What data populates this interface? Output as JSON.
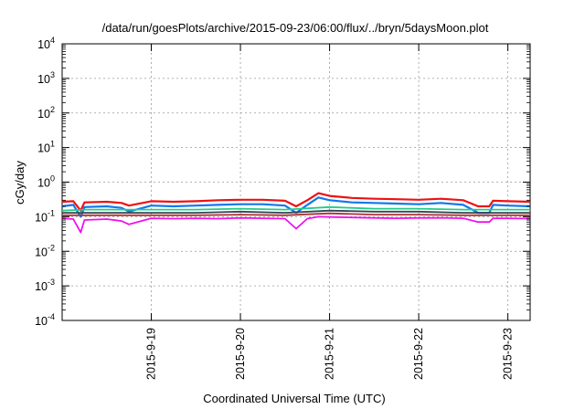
{
  "chart_data": {
    "type": "line",
    "title": "/data/run/goesPlots/archive/2015-09-23/06:00/flux/../bryn/5daysMoon.plot",
    "xlabel": "Coordinated Universal Time (UTC)",
    "ylabel": "cGy/day",
    "x_range": [
      "2015-09-18T00:00",
      "2015-09-23T06:00"
    ],
    "x_ticks": [
      "2015-9-19",
      "2015-9-20",
      "2015-9-21",
      "2015-9-22",
      "2015-9-23"
    ],
    "x_tick_times": [
      "2015-09-19T00:00",
      "2015-09-20T00:00",
      "2015-09-21T00:00",
      "2015-09-22T00:00",
      "2015-09-23T00:00"
    ],
    "y_scale": "log",
    "ylim": [
      0.0001,
      10000
    ],
    "y_ticks": [
      {
        "value": 0.0001,
        "base": "10",
        "exp": "-4"
      },
      {
        "value": 0.001,
        "base": "10",
        "exp": "-3"
      },
      {
        "value": 0.01,
        "base": "10",
        "exp": "-2"
      },
      {
        "value": 0.1,
        "base": "10",
        "exp": "-1"
      },
      {
        "value": 1,
        "base": "10",
        "exp": "0"
      },
      {
        "value": 10,
        "base": "10",
        "exp": "1"
      },
      {
        "value": 100,
        "base": "10",
        "exp": "2"
      },
      {
        "value": 1000,
        "base": "10",
        "exp": "3"
      },
      {
        "value": 10000,
        "base": "10",
        "exp": "4"
      }
    ],
    "grid": true,
    "legend": "none",
    "series": [
      {
        "color": "#ee1111",
        "values": [
          [
            "2015-09-18T00:00",
            0.27
          ],
          [
            "2015-09-18T03:00",
            0.28
          ],
          [
            "2015-09-18T05:00",
            0.15
          ],
          [
            "2015-09-18T06:00",
            0.26
          ],
          [
            "2015-09-18T12:00",
            0.27
          ],
          [
            "2015-09-18T16:00",
            0.25
          ],
          [
            "2015-09-18T18:00",
            0.21
          ],
          [
            "2015-09-19T00:00",
            0.28
          ],
          [
            "2015-09-19T06:00",
            0.27
          ],
          [
            "2015-09-19T12:00",
            0.28
          ],
          [
            "2015-09-19T18:00",
            0.3
          ],
          [
            "2015-09-20T00:00",
            0.31
          ],
          [
            "2015-09-20T06:00",
            0.31
          ],
          [
            "2015-09-20T12:00",
            0.29
          ],
          [
            "2015-09-20T15:00",
            0.2
          ],
          [
            "2015-09-20T18:00",
            0.3
          ],
          [
            "2015-09-20T21:00",
            0.48
          ],
          [
            "2015-09-21T00:00",
            0.4
          ],
          [
            "2015-09-21T06:00",
            0.35
          ],
          [
            "2015-09-21T12:00",
            0.33
          ],
          [
            "2015-09-21T18:00",
            0.32
          ],
          [
            "2015-09-22T00:00",
            0.31
          ],
          [
            "2015-09-22T06:00",
            0.33
          ],
          [
            "2015-09-22T12:00",
            0.3
          ],
          [
            "2015-09-22T16:00",
            0.2
          ],
          [
            "2015-09-22T19:00",
            0.2
          ],
          [
            "2015-09-22T20:00",
            0.29
          ],
          [
            "2015-09-23T00:00",
            0.28
          ],
          [
            "2015-09-23T06:00",
            0.27
          ]
        ]
      },
      {
        "color": "#1177ee",
        "values": [
          [
            "2015-09-18T00:00",
            0.2
          ],
          [
            "2015-09-18T03:00",
            0.22
          ],
          [
            "2015-09-18T05:00",
            0.1
          ],
          [
            "2015-09-18T06:00",
            0.19
          ],
          [
            "2015-09-18T12:00",
            0.2
          ],
          [
            "2015-09-18T16:00",
            0.18
          ],
          [
            "2015-09-18T18:00",
            0.14
          ],
          [
            "2015-09-19T00:00",
            0.21
          ],
          [
            "2015-09-19T06:00",
            0.2
          ],
          [
            "2015-09-19T12:00",
            0.21
          ],
          [
            "2015-09-19T18:00",
            0.22
          ],
          [
            "2015-09-20T00:00",
            0.23
          ],
          [
            "2015-09-20T06:00",
            0.23
          ],
          [
            "2015-09-20T12:00",
            0.21
          ],
          [
            "2015-09-20T15:00",
            0.13
          ],
          [
            "2015-09-20T18:00",
            0.22
          ],
          [
            "2015-09-20T21:00",
            0.36
          ],
          [
            "2015-09-21T00:00",
            0.3
          ],
          [
            "2015-09-21T06:00",
            0.26
          ],
          [
            "2015-09-21T12:00",
            0.25
          ],
          [
            "2015-09-21T18:00",
            0.24
          ],
          [
            "2015-09-22T00:00",
            0.23
          ],
          [
            "2015-09-22T06:00",
            0.25
          ],
          [
            "2015-09-22T12:00",
            0.22
          ],
          [
            "2015-09-22T16:00",
            0.13
          ],
          [
            "2015-09-22T19:00",
            0.13
          ],
          [
            "2015-09-22T20:00",
            0.22
          ],
          [
            "2015-09-23T00:00",
            0.21
          ],
          [
            "2015-09-23T06:00",
            0.2
          ]
        ]
      },
      {
        "color": "#22cc88",
        "values": [
          [
            "2015-09-18T00:00",
            0.15
          ],
          [
            "2015-09-18T06:00",
            0.16
          ],
          [
            "2015-09-19T00:00",
            0.16
          ],
          [
            "2015-09-19T12:00",
            0.16
          ],
          [
            "2015-09-20T00:00",
            0.17
          ],
          [
            "2015-09-20T12:00",
            0.16
          ],
          [
            "2015-09-21T00:00",
            0.19
          ],
          [
            "2015-09-21T12:00",
            0.17
          ],
          [
            "2015-09-22T00:00",
            0.17
          ],
          [
            "2015-09-22T12:00",
            0.16
          ],
          [
            "2015-09-23T00:00",
            0.16
          ],
          [
            "2015-09-23T06:00",
            0.16
          ]
        ]
      },
      {
        "color": "#334455",
        "values": [
          [
            "2015-09-18T00:00",
            0.13
          ],
          [
            "2015-09-18T06:00",
            0.13
          ],
          [
            "2015-09-19T00:00",
            0.13
          ],
          [
            "2015-09-19T12:00",
            0.13
          ],
          [
            "2015-09-20T00:00",
            0.14
          ],
          [
            "2015-09-20T12:00",
            0.13
          ],
          [
            "2015-09-21T00:00",
            0.15
          ],
          [
            "2015-09-21T12:00",
            0.14
          ],
          [
            "2015-09-22T00:00",
            0.14
          ],
          [
            "2015-09-22T12:00",
            0.13
          ],
          [
            "2015-09-23T00:00",
            0.13
          ],
          [
            "2015-09-23T06:00",
            0.13
          ]
        ]
      },
      {
        "color": "#aa3333",
        "values": [
          [
            "2015-09-18T00:00",
            0.11
          ],
          [
            "2015-09-18T06:00",
            0.11
          ],
          [
            "2015-09-19T00:00",
            0.11
          ],
          [
            "2015-09-19T12:00",
            0.11
          ],
          [
            "2015-09-20T00:00",
            0.115
          ],
          [
            "2015-09-20T12:00",
            0.11
          ],
          [
            "2015-09-21T00:00",
            0.125
          ],
          [
            "2015-09-21T12:00",
            0.115
          ],
          [
            "2015-09-22T00:00",
            0.115
          ],
          [
            "2015-09-22T12:00",
            0.11
          ],
          [
            "2015-09-23T00:00",
            0.11
          ],
          [
            "2015-09-23T06:00",
            0.11
          ]
        ]
      },
      {
        "color": "#ee11ee",
        "values": [
          [
            "2015-09-18T00:00",
            0.09
          ],
          [
            "2015-09-18T03:00",
            0.085
          ],
          [
            "2015-09-18T05:00",
            0.035
          ],
          [
            "2015-09-18T06:00",
            0.08
          ],
          [
            "2015-09-18T12:00",
            0.085
          ],
          [
            "2015-09-18T16:00",
            0.075
          ],
          [
            "2015-09-18T18:00",
            0.06
          ],
          [
            "2015-09-19T00:00",
            0.09
          ],
          [
            "2015-09-19T06:00",
            0.088
          ],
          [
            "2015-09-19T12:00",
            0.09
          ],
          [
            "2015-09-19T18:00",
            0.088
          ],
          [
            "2015-09-20T00:00",
            0.092
          ],
          [
            "2015-09-20T06:00",
            0.09
          ],
          [
            "2015-09-20T12:00",
            0.088
          ],
          [
            "2015-09-20T15:00",
            0.045
          ],
          [
            "2015-09-20T18:00",
            0.088
          ],
          [
            "2015-09-20T21:00",
            0.1
          ],
          [
            "2015-09-21T00:00",
            0.098
          ],
          [
            "2015-09-21T06:00",
            0.095
          ],
          [
            "2015-09-21T12:00",
            0.092
          ],
          [
            "2015-09-21T18:00",
            0.09
          ],
          [
            "2015-09-22T00:00",
            0.092
          ],
          [
            "2015-09-22T06:00",
            0.093
          ],
          [
            "2015-09-22T12:00",
            0.09
          ],
          [
            "2015-09-22T16:00",
            0.07
          ],
          [
            "2015-09-22T19:00",
            0.07
          ],
          [
            "2015-09-22T20:00",
            0.09
          ],
          [
            "2015-09-23T00:00",
            0.09
          ],
          [
            "2015-09-23T06:00",
            0.088
          ]
        ]
      }
    ]
  }
}
